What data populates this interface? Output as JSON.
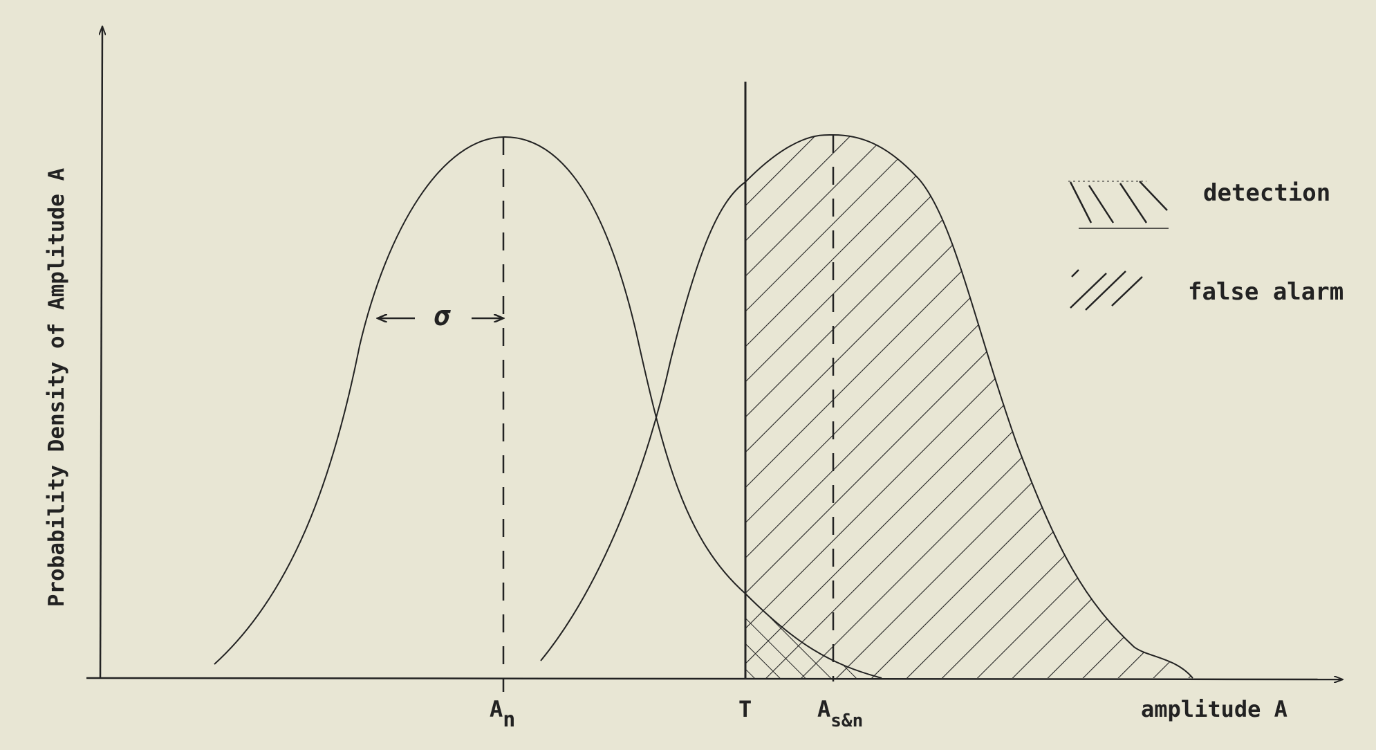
{
  "figure": {
    "y_axis_label": "Probability Density of Amplitude A",
    "x_axis_label": "amplitude A",
    "sigma_label": "σ",
    "marker_An_main": "A",
    "marker_An_sub": "n",
    "marker_T": "T",
    "marker_Asn_main": "A",
    "marker_Asn_sub": "s&n"
  },
  "legend": {
    "detection": "detection",
    "false_alarm": "false alarm"
  },
  "colors": {
    "paper": "#e8e6d4",
    "ink": "#222222"
  }
}
